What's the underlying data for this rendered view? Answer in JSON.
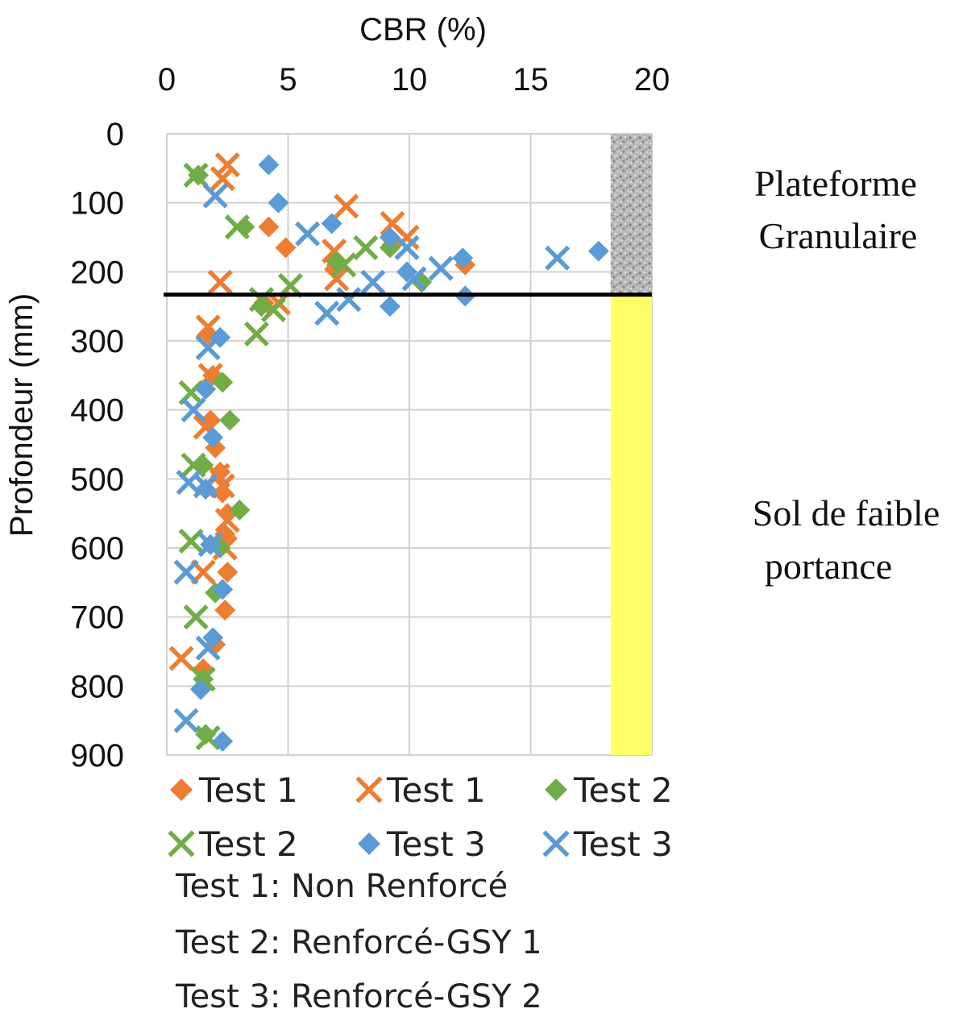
{
  "chart_data": {
    "type": "scatter",
    "title": "",
    "xlabel": "CBR (%)",
    "ylabel": "Profondeur (mm)",
    "xlim": [
      0,
      20
    ],
    "ylim": [
      0,
      900
    ],
    "y_inverted": true,
    "x_axis_position": "top",
    "x_ticks": [
      "0",
      "5",
      "10",
      "15",
      "20"
    ],
    "y_ticks": [
      "0",
      "100",
      "200",
      "300",
      "400",
      "500",
      "600",
      "700",
      "800",
      "900"
    ],
    "grid": true,
    "legend_position": "bottom",
    "interface_depth": 233,
    "layers": [
      {
        "label_lines": [
          "Plateforme",
          "Granulaire"
        ],
        "depth_range": [
          0,
          233
        ],
        "x_range": [
          18.3,
          20
        ],
        "color": "#a9a9a9"
      },
      {
        "label_lines": [
          "Sol de faible",
          "portance"
        ],
        "depth_range": [
          233,
          900
        ],
        "x_range": [
          18.3,
          20
        ],
        "color": "#ffff66"
      }
    ],
    "series": [
      {
        "name": "Test 1",
        "marker": "diamond",
        "color": "#ed7d31",
        "points": [
          [
            4.2,
            135
          ],
          [
            4.9,
            165
          ],
          [
            7.0,
            190
          ],
          [
            9.3,
            160
          ],
          [
            12.3,
            190
          ],
          [
            4.0,
            245
          ],
          [
            1.7,
            290
          ],
          [
            1.9,
            350
          ],
          [
            1.8,
            415
          ],
          [
            2.0,
            455
          ],
          [
            2.2,
            490
          ],
          [
            2.3,
            520
          ],
          [
            2.5,
            550
          ],
          [
            2.4,
            580
          ],
          [
            2.5,
            635
          ],
          [
            2.4,
            690
          ],
          [
            2.0,
            740
          ],
          [
            1.5,
            775
          ]
        ]
      },
      {
        "name": "Test 1",
        "marker": "x",
        "color": "#ed7d31",
        "points": [
          [
            2.5,
            45
          ],
          [
            2.3,
            65
          ],
          [
            7.4,
            105
          ],
          [
            9.3,
            130
          ],
          [
            9.9,
            150
          ],
          [
            6.9,
            170
          ],
          [
            7.0,
            210
          ],
          [
            2.2,
            215
          ],
          [
            4.6,
            245
          ],
          [
            1.7,
            280
          ],
          [
            1.8,
            350
          ],
          [
            1.6,
            425
          ],
          [
            2.1,
            495
          ],
          [
            2.3,
            510
          ],
          [
            2.5,
            560
          ],
          [
            2.4,
            600
          ],
          [
            1.5,
            635
          ],
          [
            0.6,
            760
          ]
        ]
      },
      {
        "name": "Test 2",
        "marker": "diamond",
        "color": "#70ad47",
        "points": [
          [
            1.3,
            60
          ],
          [
            3.2,
            135
          ],
          [
            7.0,
            185
          ],
          [
            9.2,
            165
          ],
          [
            10.5,
            215
          ],
          [
            3.9,
            250
          ],
          [
            2.3,
            360
          ],
          [
            2.6,
            415
          ],
          [
            1.5,
            480
          ],
          [
            3.0,
            545
          ],
          [
            2.2,
            600
          ],
          [
            2.0,
            665
          ],
          [
            1.5,
            790
          ],
          [
            1.6,
            870
          ]
        ]
      },
      {
        "name": "Test 2",
        "marker": "x",
        "color": "#70ad47",
        "points": [
          [
            1.2,
            60
          ],
          [
            2.9,
            135
          ],
          [
            7.3,
            190
          ],
          [
            8.2,
            165
          ],
          [
            5.1,
            220
          ],
          [
            3.9,
            240
          ],
          [
            4.4,
            255
          ],
          [
            3.7,
            290
          ],
          [
            1.0,
            375
          ],
          [
            1.1,
            480
          ],
          [
            1.0,
            590
          ],
          [
            1.2,
            700
          ],
          [
            1.5,
            790
          ],
          [
            1.7,
            875
          ]
        ]
      },
      {
        "name": "Test 3",
        "marker": "diamond",
        "color": "#5b9bd5",
        "points": [
          [
            4.2,
            45
          ],
          [
            4.6,
            100
          ],
          [
            6.8,
            130
          ],
          [
            9.2,
            150
          ],
          [
            9.9,
            200
          ],
          [
            12.2,
            180
          ],
          [
            12.3,
            235
          ],
          [
            17.8,
            170
          ],
          [
            9.2,
            250
          ],
          [
            2.2,
            295
          ],
          [
            1.6,
            370
          ],
          [
            1.9,
            440
          ],
          [
            1.6,
            515
          ],
          [
            1.8,
            595
          ],
          [
            2.3,
            660
          ],
          [
            1.9,
            730
          ],
          [
            1.4,
            805
          ],
          [
            2.3,
            880
          ]
        ]
      },
      {
        "name": "Test 3",
        "marker": "x",
        "color": "#5b9bd5",
        "points": [
          [
            2.0,
            90
          ],
          [
            5.8,
            145
          ],
          [
            9.9,
            165
          ],
          [
            11.3,
            195
          ],
          [
            10.2,
            210
          ],
          [
            8.5,
            215
          ],
          [
            7.5,
            240
          ],
          [
            6.6,
            260
          ],
          [
            16.1,
            180
          ],
          [
            1.7,
            310
          ],
          [
            1.1,
            400
          ],
          [
            0.9,
            505
          ],
          [
            1.6,
            510
          ],
          [
            1.8,
            595
          ],
          [
            0.8,
            635
          ],
          [
            1.7,
            745
          ],
          [
            0.8,
            850
          ]
        ]
      }
    ],
    "legend_notes": [
      "Test 1: Non Renforcé",
      "Test 2: Renforcé-GSY 1",
      "Test 3: Renforcé-GSY 2"
    ]
  }
}
